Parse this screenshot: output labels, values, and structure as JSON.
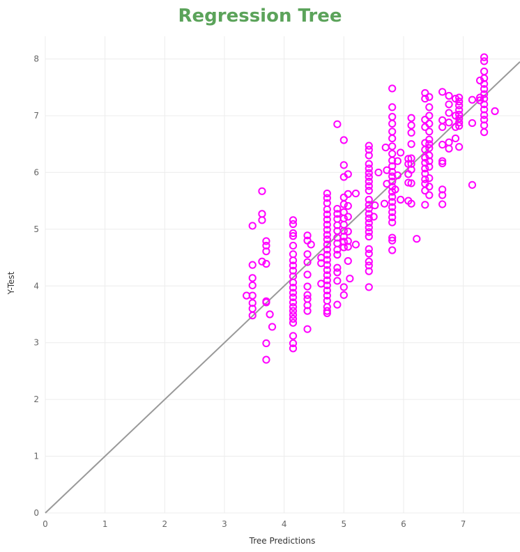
{
  "chart_data": {
    "type": "scatter",
    "title": "Regression Tree",
    "xlabel": "Tree Predictions",
    "ylabel": "Y-Test",
    "xlim": [
      0,
      7.95
    ],
    "ylim": [
      0,
      8.4
    ],
    "xticks": [
      "0",
      "1",
      "2",
      "3",
      "4",
      "5",
      "6",
      "7"
    ],
    "yticks": [
      "0",
      "1",
      "2",
      "3",
      "4",
      "5",
      "6",
      "7",
      "8"
    ],
    "grid": true,
    "legend": "none",
    "colors": {
      "title": "#5ba35a",
      "points": "#ff00ff",
      "reference_line": "#999999",
      "grid": "#ececec"
    },
    "reference_line": {
      "from": [
        0,
        0
      ],
      "to": [
        7.95,
        7.95
      ]
    },
    "points": [
      [
        3.37,
        3.83
      ],
      [
        3.47,
        5.06
      ],
      [
        3.47,
        4.37
      ],
      [
        3.47,
        4.14
      ],
      [
        3.47,
        4.01
      ],
      [
        3.47,
        3.83
      ],
      [
        3.47,
        3.7
      ],
      [
        3.47,
        3.6
      ],
      [
        3.47,
        3.48
      ],
      [
        3.63,
        5.67
      ],
      [
        3.63,
        5.27
      ],
      [
        3.63,
        5.16
      ],
      [
        3.63,
        4.43
      ],
      [
        3.7,
        4.79
      ],
      [
        3.7,
        4.71
      ],
      [
        3.7,
        4.61
      ],
      [
        3.7,
        4.39
      ],
      [
        3.7,
        3.73
      ],
      [
        3.7,
        3.71
      ],
      [
        3.7,
        2.99
      ],
      [
        3.7,
        2.7
      ],
      [
        3.76,
        3.5
      ],
      [
        3.8,
        3.28
      ],
      [
        4.15,
        5.16
      ],
      [
        4.15,
        5.09
      ],
      [
        4.15,
        4.93
      ],
      [
        4.15,
        4.88
      ],
      [
        4.15,
        4.71
      ],
      [
        4.15,
        4.56
      ],
      [
        4.15,
        4.45
      ],
      [
        4.15,
        4.36
      ],
      [
        4.15,
        4.27
      ],
      [
        4.15,
        4.17
      ],
      [
        4.15,
        4.06
      ],
      [
        4.15,
        3.97
      ],
      [
        4.15,
        3.88
      ],
      [
        4.15,
        3.8
      ],
      [
        4.15,
        3.71
      ],
      [
        4.15,
        3.63
      ],
      [
        4.15,
        3.56
      ],
      [
        4.15,
        3.49
      ],
      [
        4.15,
        3.42
      ],
      [
        4.15,
        3.35
      ],
      [
        4.15,
        3.12
      ],
      [
        4.15,
        2.99
      ],
      [
        4.15,
        2.9
      ],
      [
        4.39,
        4.89
      ],
      [
        4.39,
        4.8
      ],
      [
        4.39,
        4.56
      ],
      [
        4.39,
        4.42
      ],
      [
        4.39,
        4.2
      ],
      [
        4.39,
        3.99
      ],
      [
        4.39,
        3.84
      ],
      [
        4.39,
        3.77
      ],
      [
        4.39,
        3.66
      ],
      [
        4.39,
        3.56
      ],
      [
        4.39,
        3.24
      ],
      [
        4.45,
        4.73
      ],
      [
        4.62,
        4.04
      ],
      [
        4.62,
        4.4
      ],
      [
        4.62,
        4.5
      ],
      [
        4.72,
        5.63
      ],
      [
        4.72,
        5.55
      ],
      [
        4.72,
        5.46
      ],
      [
        4.72,
        5.35
      ],
      [
        4.72,
        5.26
      ],
      [
        4.72,
        5.17
      ],
      [
        4.72,
        5.08
      ],
      [
        4.72,
        4.99
      ],
      [
        4.72,
        4.9
      ],
      [
        4.72,
        4.82
      ],
      [
        4.72,
        4.73
      ],
      [
        4.72,
        4.64
      ],
      [
        4.72,
        4.55
      ],
      [
        4.72,
        4.46
      ],
      [
        4.72,
        4.37
      ],
      [
        4.72,
        4.28
      ],
      [
        4.72,
        4.19
      ],
      [
        4.72,
        4.1
      ],
      [
        4.72,
        4.01
      ],
      [
        4.72,
        3.92
      ],
      [
        4.72,
        3.83
      ],
      [
        4.72,
        3.74
      ],
      [
        4.72,
        3.63
      ],
      [
        4.72,
        3.56
      ],
      [
        4.72,
        3.52
      ],
      [
        4.89,
        6.85
      ],
      [
        4.89,
        5.36
      ],
      [
        4.89,
        5.27
      ],
      [
        4.89,
        5.18
      ],
      [
        4.89,
        5.07
      ],
      [
        4.89,
        4.97
      ],
      [
        4.89,
        4.85
      ],
      [
        4.89,
        4.75
      ],
      [
        4.89,
        4.64
      ],
      [
        4.89,
        4.55
      ],
      [
        4.89,
        4.32
      ],
      [
        4.89,
        4.24
      ],
      [
        4.89,
        4.09
      ],
      [
        4.89,
        3.67
      ],
      [
        5.0,
        6.57
      ],
      [
        5.0,
        6.13
      ],
      [
        5.0,
        5.92
      ],
      [
        5.0,
        5.56
      ],
      [
        5.0,
        5.44
      ],
      [
        5.0,
        5.3
      ],
      [
        5.0,
        5.19
      ],
      [
        5.0,
        5.08
      ],
      [
        5.0,
        4.97
      ],
      [
        5.0,
        4.87
      ],
      [
        5.0,
        4.78
      ],
      [
        5.0,
        4.68
      ],
      [
        5.0,
        3.98
      ],
      [
        5.0,
        3.84
      ],
      [
        5.07,
        5.97
      ],
      [
        5.07,
        5.62
      ],
      [
        5.07,
        5.41
      ],
      [
        5.07,
        5.22
      ],
      [
        5.07,
        4.96
      ],
      [
        5.07,
        4.79
      ],
      [
        5.07,
        4.69
      ],
      [
        5.07,
        4.44
      ],
      [
        5.1,
        4.13
      ],
      [
        5.2,
        5.63
      ],
      [
        5.2,
        4.73
      ],
      [
        5.42,
        6.47
      ],
      [
        5.42,
        6.4
      ],
      [
        5.42,
        6.3
      ],
      [
        5.42,
        6.15
      ],
      [
        5.42,
        6.07
      ],
      [
        5.42,
        5.99
      ],
      [
        5.42,
        5.92
      ],
      [
        5.42,
        5.84
      ],
      [
        5.42,
        5.76
      ],
      [
        5.42,
        5.68
      ],
      [
        5.42,
        5.52
      ],
      [
        5.42,
        5.43
      ],
      [
        5.42,
        5.36
      ],
      [
        5.42,
        5.27
      ],
      [
        5.42,
        5.19
      ],
      [
        5.42,
        5.11
      ],
      [
        5.42,
        5.03
      ],
      [
        5.42,
        4.95
      ],
      [
        5.42,
        4.87
      ],
      [
        5.42,
        4.65
      ],
      [
        5.42,
        4.57
      ],
      [
        5.42,
        4.43
      ],
      [
        5.42,
        4.36
      ],
      [
        5.42,
        4.26
      ],
      [
        5.42,
        3.98
      ],
      [
        5.5,
        5.22
      ],
      [
        5.52,
        5.42
      ],
      [
        5.58,
        6.0
      ],
      [
        5.68,
        5.45
      ],
      [
        5.7,
        6.44
      ],
      [
        5.72,
        5.8
      ],
      [
        5.72,
        6.04
      ],
      [
        5.81,
        7.48
      ],
      [
        5.81,
        7.15
      ],
      [
        5.81,
        6.98
      ],
      [
        5.81,
        6.86
      ],
      [
        5.81,
        6.72
      ],
      [
        5.81,
        6.6
      ],
      [
        5.81,
        6.46
      ],
      [
        5.81,
        6.33
      ],
      [
        5.81,
        6.21
      ],
      [
        5.81,
        6.11
      ],
      [
        5.81,
        6.01
      ],
      [
        5.81,
        5.93
      ],
      [
        5.81,
        5.84
      ],
      [
        5.81,
        5.75
      ],
      [
        5.81,
        5.66
      ],
      [
        5.81,
        5.57
      ],
      [
        5.81,
        5.48
      ],
      [
        5.81,
        5.39
      ],
      [
        5.81,
        5.3
      ],
      [
        5.81,
        5.21
      ],
      [
        5.81,
        5.12
      ],
      [
        5.81,
        4.85
      ],
      [
        5.81,
        4.8
      ],
      [
        5.81,
        4.63
      ],
      [
        5.86,
        5.7
      ],
      [
        5.9,
        6.2
      ],
      [
        5.9,
        5.95
      ],
      [
        5.95,
        5.52
      ],
      [
        5.95,
        6.35
      ],
      [
        6.08,
        6.24
      ],
      [
        6.08,
        6.15
      ],
      [
        6.08,
        5.97
      ],
      [
        6.08,
        5.82
      ],
      [
        6.08,
        5.5
      ],
      [
        6.13,
        6.96
      ],
      [
        6.13,
        6.83
      ],
      [
        6.13,
        6.7
      ],
      [
        6.13,
        6.5
      ],
      [
        6.13,
        6.25
      ],
      [
        6.13,
        6.15
      ],
      [
        6.13,
        6.05
      ],
      [
        6.13,
        5.81
      ],
      [
        6.13,
        5.45
      ],
      [
        6.22,
        4.83
      ],
      [
        6.36,
        7.4
      ],
      [
        6.36,
        7.3
      ],
      [
        6.36,
        6.93
      ],
      [
        6.36,
        6.8
      ],
      [
        6.36,
        6.52
      ],
      [
        6.36,
        6.4
      ],
      [
        6.36,
        6.26
      ],
      [
        6.36,
        6.17
      ],
      [
        6.36,
        6.07
      ],
      [
        6.36,
        5.98
      ],
      [
        6.36,
        5.88
      ],
      [
        6.36,
        5.8
      ],
      [
        6.36,
        5.68
      ],
      [
        6.36,
        5.43
      ],
      [
        6.43,
        7.33
      ],
      [
        6.43,
        7.15
      ],
      [
        6.43,
        7.0
      ],
      [
        6.43,
        6.86
      ],
      [
        6.43,
        6.72
      ],
      [
        6.43,
        6.58
      ],
      [
        6.43,
        6.5
      ],
      [
        6.43,
        6.43
      ],
      [
        6.43,
        6.3
      ],
      [
        6.43,
        6.2
      ],
      [
        6.43,
        6.1
      ],
      [
        6.43,
        5.9
      ],
      [
        6.43,
        5.75
      ],
      [
        6.43,
        5.6
      ],
      [
        6.65,
        7.42
      ],
      [
        6.65,
        6.92
      ],
      [
        6.65,
        6.8
      ],
      [
        6.65,
        6.49
      ],
      [
        6.65,
        6.2
      ],
      [
        6.65,
        6.16
      ],
      [
        6.65,
        5.7
      ],
      [
        6.65,
        5.6
      ],
      [
        6.65,
        5.44
      ],
      [
        6.76,
        7.35
      ],
      [
        6.76,
        7.2
      ],
      [
        6.76,
        7.05
      ],
      [
        6.76,
        6.88
      ],
      [
        6.76,
        6.53
      ],
      [
        6.76,
        6.42
      ],
      [
        6.87,
        7.3
      ],
      [
        6.87,
        7.0
      ],
      [
        6.87,
        6.8
      ],
      [
        6.87,
        6.6
      ],
      [
        6.93,
        7.32
      ],
      [
        6.93,
        7.25
      ],
      [
        6.93,
        7.18
      ],
      [
        6.93,
        7.1
      ],
      [
        6.93,
        7.02
      ],
      [
        6.93,
        6.95
      ],
      [
        6.93,
        6.88
      ],
      [
        6.93,
        6.82
      ],
      [
        6.93,
        6.45
      ],
      [
        7.15,
        7.28
      ],
      [
        7.15,
        6.87
      ],
      [
        7.15,
        5.78
      ],
      [
        7.28,
        7.62
      ],
      [
        7.28,
        7.32
      ],
      [
        7.28,
        7.27
      ],
      [
        7.35,
        8.03
      ],
      [
        7.35,
        7.96
      ],
      [
        7.35,
        7.78
      ],
      [
        7.35,
        7.66
      ],
      [
        7.35,
        7.56
      ],
      [
        7.35,
        7.47
      ],
      [
        7.35,
        7.38
      ],
      [
        7.35,
        7.3
      ],
      [
        7.35,
        7.2
      ],
      [
        7.35,
        7.11
      ],
      [
        7.35,
        7.01
      ],
      [
        7.35,
        6.93
      ],
      [
        7.35,
        6.83
      ],
      [
        7.35,
        6.71
      ],
      [
        7.53,
        7.08
      ]
    ]
  }
}
